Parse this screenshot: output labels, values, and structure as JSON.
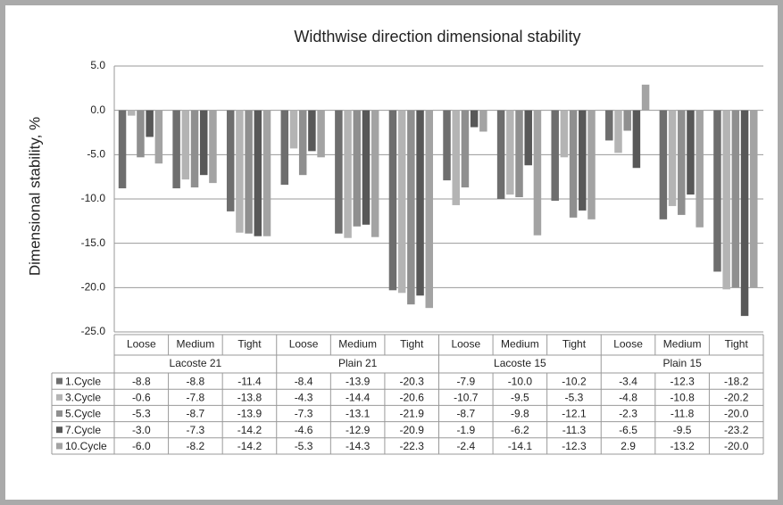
{
  "chart_data": {
    "type": "bar",
    "title": "Widthwise direction dimensional stability",
    "y_label": "Dimensional stability, %",
    "categories": [
      "Loose",
      "Medium",
      "Tight",
      "Loose",
      "Medium",
      "Tight",
      "Loose",
      "Medium",
      "Tight",
      "Loose",
      "Medium",
      "Tight"
    ],
    "groups": [
      "Lacoste 21",
      "Plain 21",
      "Lacoste 15",
      "Plain 15"
    ],
    "ylim": [
      -25,
      5
    ],
    "yticks": [
      {
        "value": 5,
        "label": "5.0"
      },
      {
        "value": 0,
        "label": "0.0"
      },
      {
        "value": -5,
        "label": "-5.0"
      },
      {
        "value": -10,
        "label": "-10.0"
      },
      {
        "value": -15,
        "label": "-15.0"
      },
      {
        "value": -20,
        "label": "-20.0"
      },
      {
        "value": -25,
        "label": "-25.0"
      }
    ],
    "grid": true,
    "series": [
      {
        "name": "1.Cycle",
        "color": "#6e6e6e",
        "values": [
          -8.8,
          -8.8,
          -11.4,
          -8.4,
          -13.9,
          -20.3,
          -7.9,
          -10.0,
          -10.2,
          -3.4,
          -12.3,
          -18.2
        ],
        "value_labels": [
          "-8.8",
          "-8.8",
          "-11.4",
          "-8.4",
          "-13.9",
          "-20.3",
          "-7.9",
          "-10.0",
          "-10.2",
          "-3.4",
          "-12.3",
          "-18.2"
        ]
      },
      {
        "name": "3.Cycle",
        "color": "#b4b4b4",
        "values": [
          -0.6,
          -7.8,
          -13.8,
          -4.3,
          -14.4,
          -20.6,
          -10.7,
          -9.5,
          -5.3,
          -4.8,
          -10.8,
          -20.2
        ],
        "value_labels": [
          "-0.6",
          "-7.8",
          "-13.8",
          "-4.3",
          "-14.4",
          "-20.6",
          "-10.7",
          "-9.5",
          "-5.3",
          "-4.8",
          "-10.8",
          "-20.2"
        ]
      },
      {
        "name": "5.Cycle",
        "color": "#8f8f8f",
        "values": [
          -5.3,
          -8.7,
          -13.9,
          -7.3,
          -13.1,
          -21.9,
          -8.7,
          -9.8,
          -12.1,
          -2.3,
          -11.8,
          -20.0
        ],
        "value_labels": [
          "-5.3",
          "-8.7",
          "-13.9",
          "-7.3",
          "-13.1",
          "-21.9",
          "-8.7",
          "-9.8",
          "-12.1",
          "-2.3",
          "-11.8",
          "-20.0"
        ]
      },
      {
        "name": "7.Cycle",
        "color": "#585858",
        "values": [
          -3.0,
          -7.3,
          -14.2,
          -4.6,
          -12.9,
          -20.9,
          -1.9,
          -6.2,
          -11.3,
          -6.5,
          -9.5,
          -23.2
        ],
        "value_labels": [
          "-3.0",
          "-7.3",
          "-14.2",
          "-4.6",
          "-12.9",
          "-20.9",
          "-1.9",
          "-6.2",
          "-11.3",
          "-6.5",
          "-9.5",
          "-23.2"
        ]
      },
      {
        "name": "10.Cycle",
        "color": "#a3a3a3",
        "values": [
          -6.0,
          -8.2,
          -14.2,
          -5.3,
          -14.3,
          -22.3,
          -2.4,
          -14.1,
          -12.3,
          2.9,
          -13.2,
          -20.0
        ],
        "value_labels": [
          "-6.0",
          "-8.2",
          "-14.2",
          "-5.3",
          "-14.3",
          "-22.3",
          "-2.4",
          "-14.1",
          "-12.3",
          "2.9",
          "-13.2",
          "-20.0"
        ]
      }
    ]
  }
}
